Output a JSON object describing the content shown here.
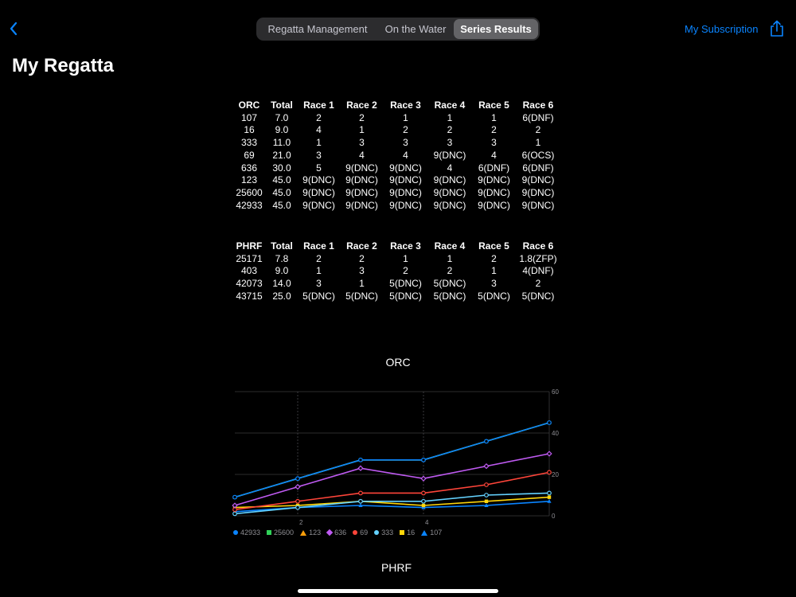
{
  "nav": {
    "segments": [
      "Regatta Management",
      "On the Water",
      "Series Results"
    ],
    "selected_segment": "Series Results",
    "subscription_label": "My Subscription"
  },
  "page_title": "My Regatta",
  "tables": {
    "orc": {
      "headers": [
        "ORC",
        "Total",
        "Race 1",
        "Race 2",
        "Race 3",
        "Race 4",
        "Race 5",
        "Race 6"
      ],
      "rows": [
        [
          "107",
          "7.0",
          "2",
          "2",
          "1",
          "1",
          "1",
          "6(DNF)"
        ],
        [
          "16",
          "9.0",
          "4",
          "1",
          "2",
          "2",
          "2",
          "2"
        ],
        [
          "333",
          "11.0",
          "1",
          "3",
          "3",
          "3",
          "3",
          "1"
        ],
        [
          "69",
          "21.0",
          "3",
          "4",
          "4",
          "9(DNC)",
          "4",
          "6(OCS)"
        ],
        [
          "636",
          "30.0",
          "5",
          "9(DNC)",
          "9(DNC)",
          "4",
          "6(DNF)",
          "6(DNF)"
        ],
        [
          "123",
          "45.0",
          "9(DNC)",
          "9(DNC)",
          "9(DNC)",
          "9(DNC)",
          "9(DNC)",
          "9(DNC)"
        ],
        [
          "25600",
          "45.0",
          "9(DNC)",
          "9(DNC)",
          "9(DNC)",
          "9(DNC)",
          "9(DNC)",
          "9(DNC)"
        ],
        [
          "42933",
          "45.0",
          "9(DNC)",
          "9(DNC)",
          "9(DNC)",
          "9(DNC)",
          "9(DNC)",
          "9(DNC)"
        ]
      ]
    },
    "phrf": {
      "headers": [
        "PHRF",
        "Total",
        "Race 1",
        "Race 2",
        "Race 3",
        "Race 4",
        "Race 5",
        "Race 6"
      ],
      "rows": [
        [
          "25171",
          "7.8",
          "2",
          "2",
          "1",
          "1",
          "2",
          "1.8(ZFP)"
        ],
        [
          "403",
          "9.0",
          "1",
          "3",
          "2",
          "2",
          "1",
          "4(DNF)"
        ],
        [
          "42073",
          "14.0",
          "3",
          "1",
          "5(DNC)",
          "5(DNC)",
          "3",
          "2"
        ],
        [
          "43715",
          "25.0",
          "5(DNC)",
          "5(DNC)",
          "5(DNC)",
          "5(DNC)",
          "5(DNC)",
          "5(DNC)"
        ]
      ]
    }
  },
  "chart_data": [
    {
      "type": "line",
      "title": "ORC",
      "x": [
        1,
        2,
        3,
        4,
        5,
        6
      ],
      "x_ticks": [
        "2",
        "4"
      ],
      "y_ticks": [
        "0",
        "20",
        "40",
        "60"
      ],
      "ylim": [
        0,
        60
      ],
      "grid": true,
      "legend_placement": "bottom-left",
      "series": [
        {
          "name": "42933",
          "color": "#0a84ff",
          "marker": "circle",
          "values": [
            9,
            18,
            27,
            27,
            36,
            45
          ]
        },
        {
          "name": "25600",
          "color": "#30d158",
          "marker": "square",
          "values": [
            9,
            18,
            27,
            27,
            36,
            45
          ]
        },
        {
          "name": "123",
          "color": "#ff9f0a",
          "marker": "triangle",
          "values": [
            9,
            18,
            27,
            27,
            36,
            45
          ]
        },
        {
          "name": "636",
          "color": "#bf5af2",
          "marker": "diamond",
          "values": [
            5,
            14,
            23,
            18,
            24,
            30
          ]
        },
        {
          "name": "69",
          "color": "#ff453a",
          "marker": "circle",
          "values": [
            3,
            7,
            11,
            11,
            15,
            21
          ]
        },
        {
          "name": "333",
          "color": "#64d2ff",
          "marker": "circle",
          "values": [
            1,
            4,
            7,
            7,
            10,
            11
          ]
        },
        {
          "name": "16",
          "color": "#ffd60a",
          "marker": "square",
          "values": [
            4,
            5,
            7,
            5,
            7,
            9
          ]
        },
        {
          "name": "107",
          "color": "#0a84ff",
          "marker": "triangle",
          "values": [
            2,
            4,
            5,
            4,
            5,
            7
          ]
        }
      ]
    },
    {
      "type": "line",
      "title": "PHRF"
    }
  ]
}
